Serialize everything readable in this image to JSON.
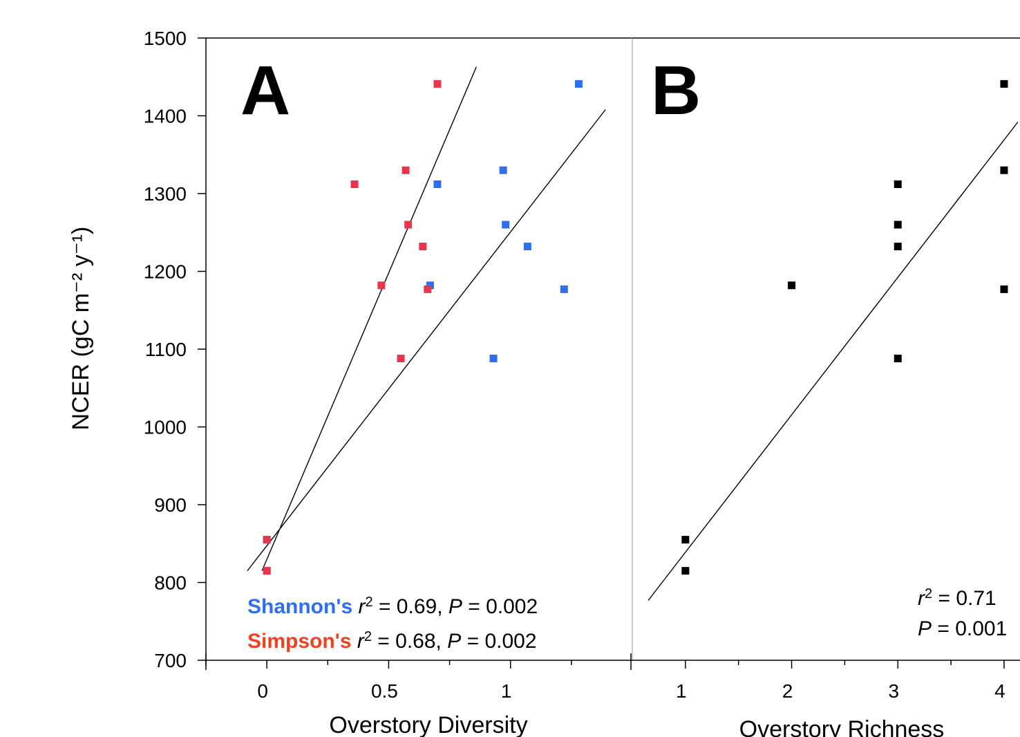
{
  "y_axis_label": "NCER (gC m⁻² y⁻¹)",
  "colors": {
    "shannon": "#2e6ef0",
    "simpson": "#e8354a",
    "simpson_label": "#f0401e",
    "black": "#000000",
    "divider": "#cccccc"
  },
  "chart_data": [
    {
      "panel": "A",
      "type": "scatter",
      "xlabel": "Overstory Diversity",
      "ylabel": "NCER (gC m⁻² y⁻¹)",
      "xlim": [
        -0.25,
        1.5
      ],
      "ylim": [
        700,
        1500
      ],
      "x_ticks": [
        0,
        0.5,
        1
      ],
      "x_tick_labels": [
        "0",
        "0.5",
        "1"
      ],
      "y_ticks": [
        700,
        800,
        900,
        1000,
        1100,
        1200,
        1300,
        1400,
        1500
      ],
      "y_tick_labels": [
        "700",
        "800",
        "900",
        "1000",
        "1100",
        "1200",
        "1300",
        "1400",
        "1500"
      ],
      "series": [
        {
          "name": "Shannon's",
          "color_key": "shannon",
          "points": [
            [
              0.0,
              855
            ],
            [
              0.0,
              815
            ],
            [
              0.7,
              1312
            ],
            [
              0.97,
              1330
            ],
            [
              0.98,
              1260
            ],
            [
              1.07,
              1232
            ],
            [
              0.67,
              1182
            ],
            [
              1.22,
              1177
            ],
            [
              0.93,
              1088
            ],
            [
              1.28,
              1441
            ]
          ],
          "fit": {
            "x": [
              -0.08,
              1.39
            ],
            "y": [
              815,
              1408
            ]
          },
          "stats": {
            "r2": "0.69",
            "p": "0.002"
          }
        },
        {
          "name": "Simpson's",
          "color_key": "simpson",
          "points": [
            [
              0.0,
              855
            ],
            [
              0.0,
              815
            ],
            [
              0.36,
              1312
            ],
            [
              0.57,
              1330
            ],
            [
              0.58,
              1260
            ],
            [
              0.64,
              1232
            ],
            [
              0.47,
              1182
            ],
            [
              0.66,
              1177
            ],
            [
              0.55,
              1088
            ],
            [
              0.7,
              1441
            ]
          ],
          "fit": {
            "x": [
              -0.02,
              0.86
            ],
            "y": [
              815,
              1463
            ]
          },
          "stats": {
            "r2": "0.68",
            "p": "0.002"
          }
        }
      ]
    },
    {
      "panel": "B",
      "type": "scatter",
      "xlabel": "Overstory Richness",
      "xlim": [
        0.5,
        4.15
      ],
      "ylim": [
        700,
        1500
      ],
      "x_ticks": [
        1,
        2,
        3,
        4
      ],
      "x_tick_labels": [
        "1",
        "2",
        "3",
        "4"
      ],
      "series": [
        {
          "color_key": "black",
          "points": [
            [
              1,
              855
            ],
            [
              1,
              815
            ],
            [
              2,
              1182
            ],
            [
              3,
              1312
            ],
            [
              3,
              1260
            ],
            [
              3,
              1232
            ],
            [
              3,
              1088
            ],
            [
              4,
              1441
            ],
            [
              4,
              1330
            ],
            [
              4,
              1177
            ]
          ],
          "fit": {
            "x": [
              0.65,
              4.13
            ],
            "y": [
              777,
              1392
            ]
          },
          "stats": {
            "r2": "0.71",
            "p": "0.001"
          }
        }
      ]
    }
  ]
}
